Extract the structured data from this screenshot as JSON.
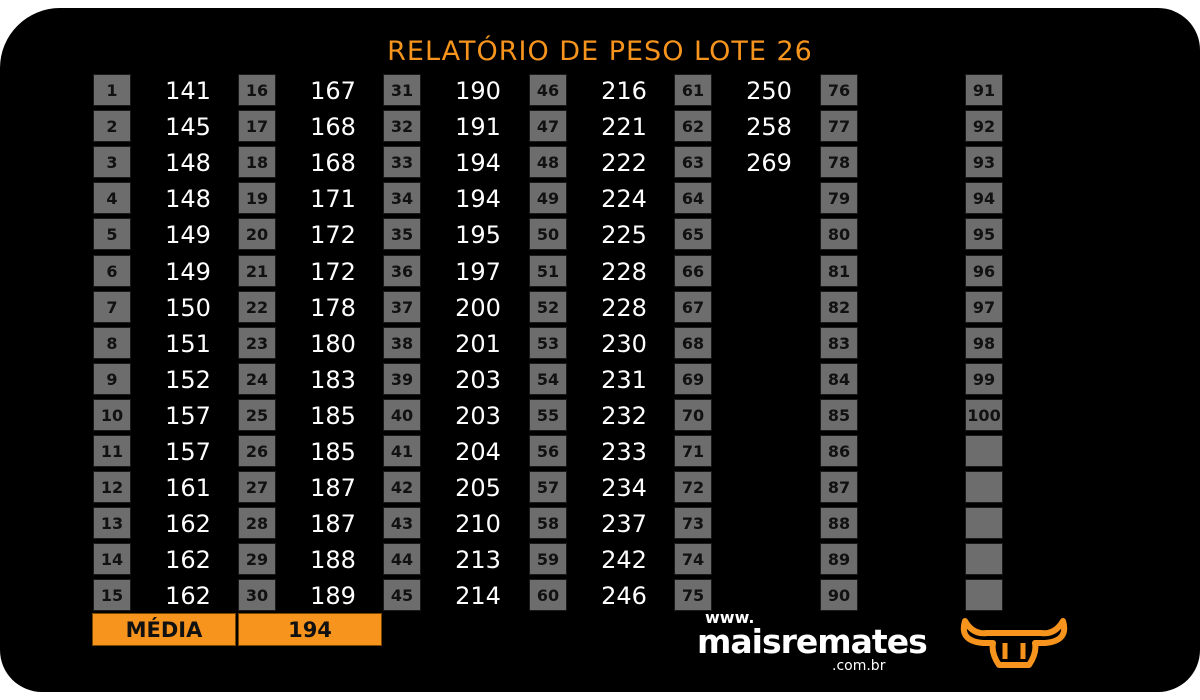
{
  "title": "RELATÓRIO DE PESO LOTE  26",
  "columns": [
    {
      "start": 1,
      "values": [
        "141",
        "145",
        "148",
        "148",
        "149",
        "149",
        "150",
        "151",
        "152",
        "157",
        "157",
        "161",
        "162",
        "162",
        "162"
      ]
    },
    {
      "start": 16,
      "values": [
        "167",
        "168",
        "168",
        "171",
        "172",
        "172",
        "178",
        "180",
        "183",
        "185",
        "185",
        "187",
        "187",
        "188",
        "189"
      ]
    },
    {
      "start": 31,
      "values": [
        "190",
        "191",
        "194",
        "194",
        "195",
        "197",
        "200",
        "201",
        "203",
        "203",
        "204",
        "205",
        "210",
        "213",
        "214"
      ]
    },
    {
      "start": 46,
      "values": [
        "216",
        "221",
        "222",
        "224",
        "225",
        "228",
        "228",
        "230",
        "231",
        "232",
        "233",
        "234",
        "237",
        "242",
        "246"
      ]
    },
    {
      "start": 61,
      "values": [
        "250",
        "258",
        "269",
        "",
        "",
        "",
        "",
        "",
        "",
        "",
        "",
        "",
        "",
        "",
        ""
      ]
    },
    {
      "start": 76,
      "values": [
        "",
        "",
        "",
        "",
        "",
        "",
        "",
        "",
        "",
        "",
        "",
        "",
        "",
        "",
        ""
      ]
    },
    {
      "start": 91,
      "values": [
        "",
        "",
        "",
        "",
        "",
        "",
        "",
        "",
        "",
        ""
      ]
    }
  ],
  "media": {
    "label": "MÉDIA",
    "value": "194"
  },
  "logo": {
    "www": "www.",
    "name": "maisremates",
    "domain": ".com.br"
  },
  "colors": {
    "accent": "#f7941d",
    "cell": "#6d6d6d",
    "background": "#000000"
  }
}
